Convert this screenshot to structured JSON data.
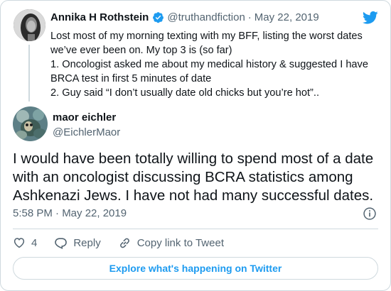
{
  "parent_tweet": {
    "author_name": "Annika H Rothstein",
    "handle": "@truthandfiction",
    "separator": "·",
    "date": "May 22, 2019",
    "text_lines": [
      "Lost most of my morning texting with my BFF, listing the worst dates",
      "we’ve ever been on. My top 3 is (so far)",
      "1. Oncologist asked me about my medical history & suggested I have",
      "BRCA test in first 5 minutes of date",
      "2. Guy said “I don’t usually date old chicks but you’re hot”.."
    ]
  },
  "main_tweet": {
    "author_name": "maor eichler",
    "handle": "@EichlerMaor",
    "text_lines": [
      "I would have been totally willing to spend most of a date",
      "with an oncologist discussing BCRA statistics among",
      "Ashkenazi Jews. I have not had many successful dates."
    ],
    "timestamp": "5:58 PM · May 22, 2019"
  },
  "actions": {
    "like_count": "4",
    "reply_label": "Reply",
    "copy_link_label": "Copy link to Tweet"
  },
  "explore_label": "Explore what's happening on Twitter",
  "icons": {
    "brand": "twitter-bird-icon",
    "verified": "verified-badge-icon",
    "info": "info-icon",
    "like": "heart-icon",
    "reply": "speech-bubble-icon",
    "copy_link": "link-icon"
  },
  "colors": {
    "brand_blue": "#1d9bf0",
    "text": "#0f1419",
    "secondary_text": "#536471",
    "border": "#cfd9de"
  }
}
